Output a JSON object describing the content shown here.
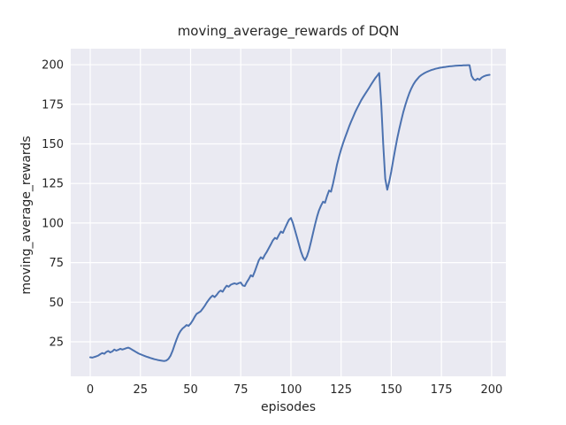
{
  "figure": {
    "background_color": "#ffffff"
  },
  "chart_data": {
    "type": "line",
    "title": "moving_average_rewards of DQN",
    "xlabel": "episodes",
    "ylabel": "moving_average_rewards",
    "x_ticks": [
      0,
      25,
      50,
      75,
      100,
      125,
      150,
      175,
      200
    ],
    "y_ticks": [
      25,
      50,
      75,
      100,
      125,
      150,
      175,
      200
    ],
    "xlim": [
      -9.7,
      207.1
    ],
    "ylim": [
      3.2,
      210.1
    ],
    "grid": true,
    "legend": "none",
    "line_color": "#4c72b0",
    "plot_background_color": "#eaeaf2",
    "gridline_color": "#ffffff",
    "x_start": 0,
    "x_step": 1,
    "values": [
      15.2,
      15.0,
      15.4,
      15.8,
      16.3,
      17.2,
      17.9,
      17.4,
      18.6,
      19.2,
      18.3,
      18.9,
      20.1,
      19.4,
      19.9,
      20.6,
      20.1,
      20.5,
      21.0,
      21.3,
      20.7,
      19.9,
      19.2,
      18.4,
      17.7,
      17.1,
      16.6,
      16.1,
      15.6,
      15.2,
      14.8,
      14.4,
      14.0,
      13.7,
      13.4,
      13.2,
      13.0,
      12.9,
      13.2,
      14.2,
      16.2,
      19.2,
      22.8,
      26.4,
      29.6,
      31.8,
      33.4,
      34.4,
      35.6,
      35.0,
      36.4,
      38.4,
      40.6,
      42.6,
      43.4,
      44.2,
      45.8,
      47.6,
      49.6,
      51.4,
      53.0,
      54.2,
      53.2,
      54.6,
      56.4,
      57.4,
      56.6,
      58.8,
      60.4,
      59.8,
      61.0,
      61.6,
      61.9,
      61.4,
      62.0,
      62.4,
      60.6,
      60.2,
      62.6,
      64.6,
      67.0,
      66.2,
      69.4,
      73.0,
      76.4,
      78.4,
      77.4,
      79.8,
      81.8,
      84.2,
      86.6,
      89.0,
      90.6,
      90.0,
      92.4,
      94.6,
      93.8,
      96.6,
      99.4,
      102.0,
      103.2,
      100.0,
      95.5,
      91.0,
      86.5,
      82.0,
      78.5,
      76.5,
      79.0,
      83.0,
      88.0,
      93.5,
      99.0,
      104.0,
      108.0,
      111.0,
      113.5,
      112.8,
      117.0,
      120.5,
      119.8,
      125.0,
      131.0,
      137.0,
      142.0,
      146.5,
      150.5,
      154.0,
      157.5,
      161.0,
      164.0,
      167.0,
      170.0,
      172.5,
      175.0,
      177.5,
      179.5,
      181.5,
      183.5,
      185.5,
      187.5,
      189.5,
      191.5,
      193.0,
      194.8,
      175.0,
      150.0,
      128.0,
      121.0,
      126.0,
      132.5,
      140.0,
      147.0,
      153.5,
      159.5,
      165.0,
      170.0,
      174.5,
      178.5,
      182.0,
      185.0,
      187.5,
      189.5,
      191.0,
      192.5,
      193.5,
      194.3,
      195.0,
      195.6,
      196.1,
      196.6,
      197.0,
      197.4,
      197.7,
      198.0,
      198.2,
      198.4,
      198.6,
      198.8,
      199.0,
      199.1,
      199.2,
      199.3,
      199.4,
      199.5,
      199.5,
      199.6,
      199.6,
      199.7,
      199.7,
      193.0,
      190.8,
      190.2,
      191.2,
      190.5,
      191.8,
      192.6,
      193.1,
      193.4,
      193.6
    ]
  }
}
